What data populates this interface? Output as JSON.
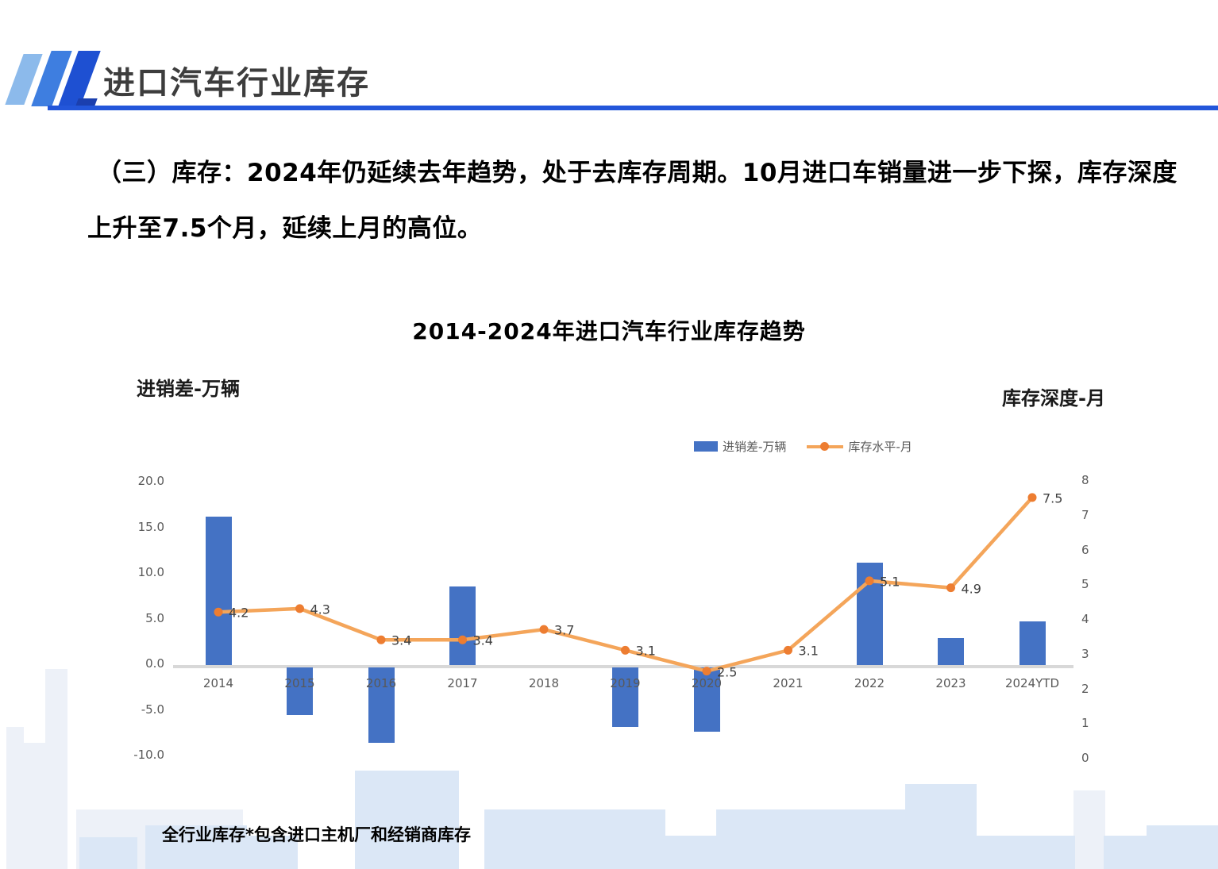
{
  "header": {
    "title": "进口汽车行业库存"
  },
  "paragraph": {
    "line1": "（三）库存：2024年仍延续去年趋势，处于去库存周期。10月进口车销量进一步下探，库存深度",
    "line2": "上升至7.5个月，延续上月的高位。"
  },
  "chart": {
    "title": "2014-2024年进口汽车行业库存趋势",
    "left_axis_unit": "进销差-万辆",
    "right_axis_unit": "库存深度-月",
    "legend": [
      {
        "label": "进销差-万辆",
        "type": "bar",
        "color": "#4472C4"
      },
      {
        "label": "库存水平-月",
        "type": "line",
        "color": "#ED7D31"
      }
    ]
  },
  "chart_data": {
    "type": "bar",
    "title": "2014-2024年进口汽车行业库存趋势",
    "categories": [
      "2014",
      "2015",
      "2016",
      "2017",
      "2018",
      "2019",
      "2020",
      "2021",
      "2022",
      "2023",
      "2024YTD"
    ],
    "series": [
      {
        "name": "进销差-万辆",
        "type": "bar",
        "axis": "left",
        "color": "#4472C4",
        "values": [
          16.3,
          -5.2,
          -8.3,
          8.6,
          0,
          -6.5,
          -7.0,
          0,
          11.2,
          3.0,
          4.8
        ]
      },
      {
        "name": "库存水平-月",
        "type": "line",
        "axis": "right",
        "color": "#ED7D31",
        "values": [
          4.2,
          4.3,
          3.4,
          3.4,
          3.7,
          3.1,
          2.5,
          3.1,
          5.1,
          4.9,
          7.5
        ],
        "data_labels": [
          "4.2",
          "4.3",
          "3.4",
          "3.4",
          "3.7",
          "3.1",
          "2.5",
          "3.1",
          "5.1",
          "4.9",
          "7.5"
        ]
      }
    ],
    "left_axis": {
      "label": "进销差-万辆",
      "ticks": [
        "20.0",
        "15.0",
        "10.0",
        "5.0",
        "0.0",
        "-5.0",
        "-10.0"
      ],
      "range": [
        -10,
        20
      ]
    },
    "right_axis": {
      "label": "库存深度-月",
      "ticks": [
        "8",
        "7",
        "6",
        "5",
        "4",
        "3",
        "2",
        "1",
        "0"
      ],
      "range": [
        0,
        8
      ]
    },
    "grid": false,
    "legend_position": "top-right"
  },
  "footnote": "全行业库存*包含进口主机厂和经销商库存",
  "colors": {
    "bar": "#4472C4",
    "line": "#F4A55A",
    "marker": "#ED7D31",
    "accent_rule": "#2356DA",
    "logo_light": "#8cbaeb",
    "logo_mid": "#3e7ee0",
    "logo_dark": "#1e50d2",
    "axis_text": "#595959",
    "deco_pale": "#EDF1F8",
    "deco_blue": "#DBE7F6"
  }
}
